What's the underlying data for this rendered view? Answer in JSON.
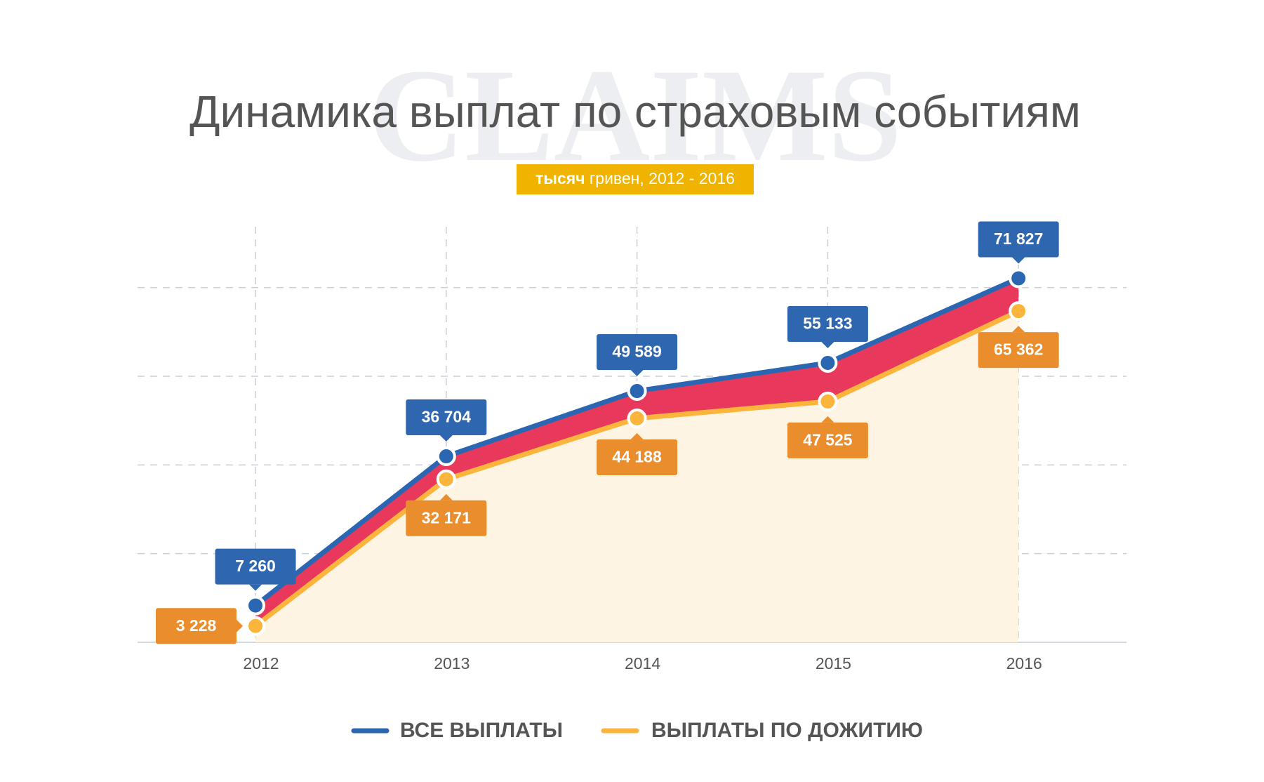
{
  "chart_data": {
    "type": "line",
    "title": "Динамика выплат по страховым событиям",
    "watermark": "CLAIMS",
    "subtitle": {
      "bold": "тысяч",
      "text": "гривен, 2012 - 2016",
      "background": "#f0b400"
    },
    "categories": [
      "2012",
      "2013",
      "2014",
      "2015",
      "2016"
    ],
    "series": [
      {
        "name": "ВСЕ ВЫПЛАТЫ",
        "color": "#2a66b1",
        "label_color": "#2f66b0",
        "values": [
          7260,
          36704,
          49589,
          55133,
          71827
        ],
        "value_labels": [
          "7 260",
          "36 704",
          "49 589",
          "55 133",
          "71 827"
        ]
      },
      {
        "name": "ВЫПЛАТЫ ПО ДОЖИТИЮ",
        "color": "#fbb53c",
        "label_color": "#ea8d2c",
        "values": [
          3228,
          32171,
          44188,
          47525,
          65362
        ],
        "value_labels": [
          "3 228",
          "32 171",
          "44 188",
          "47 525",
          "65 362"
        ]
      }
    ],
    "band_color": "#e8395c",
    "area_color": "#fdf4e3",
    "ylim": [
      0,
      82000
    ],
    "yticks": [
      0,
      17500,
      35000,
      52500,
      70000
    ],
    "grid": true
  }
}
